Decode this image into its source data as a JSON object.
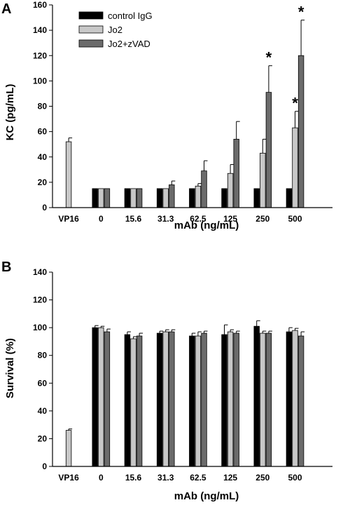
{
  "legend": [
    {
      "name": "control IgG",
      "color": "#000000"
    },
    {
      "name": "Jo2",
      "color": "#c8c8c8"
    },
    {
      "name": "Jo2+zVAD",
      "color": "#6b6b6b"
    }
  ],
  "chart_data": [
    {
      "type": "bar",
      "panel": "A",
      "ylabel": "KC (pg/mL)",
      "xlabel": "mAb (ng/mL)",
      "ylim": [
        0,
        160
      ],
      "yticks": [
        0,
        20,
        40,
        60,
        80,
        100,
        120,
        140,
        160
      ],
      "categories": [
        "VP16",
        "0",
        "15.6",
        "31.3",
        "62.5",
        "125",
        "250",
        "500"
      ],
      "legend_position": "top-left",
      "series": [
        {
          "name": "control IgG",
          "values": [
            null,
            15,
            15,
            15,
            15,
            15,
            15,
            15
          ],
          "errors": [
            null,
            0,
            0,
            0,
            0,
            0,
            0,
            0
          ]
        },
        {
          "name": "Jo2",
          "values": [
            52,
            15,
            15,
            15,
            17,
            27,
            43,
            63
          ],
          "errors": [
            3,
            0,
            0,
            0,
            2,
            7,
            11,
            13
          ]
        },
        {
          "name": "Jo2+zVAD",
          "values": [
            null,
            15,
            15,
            18,
            29,
            54,
            91,
            120
          ],
          "errors": [
            null,
            0,
            0,
            3,
            8,
            14,
            21,
            28
          ]
        }
      ],
      "annotations": [
        {
          "text": "*",
          "category": "250",
          "series": "Jo2+zVAD"
        },
        {
          "text": "*",
          "category": "500",
          "series": "Jo2"
        },
        {
          "text": "*",
          "category": "500",
          "series": "Jo2+zVAD"
        }
      ]
    },
    {
      "type": "bar",
      "panel": "B",
      "ylabel": "Survival (%)",
      "xlabel": "mAb (ng/mL)",
      "ylim": [
        0,
        140
      ],
      "yticks": [
        0,
        20,
        40,
        60,
        80,
        100,
        120,
        140
      ],
      "categories": [
        "VP16",
        "0",
        "15.6",
        "31.3",
        "62.5",
        "125",
        "250",
        "500"
      ],
      "series": [
        {
          "name": "control IgG",
          "values": [
            null,
            100,
            95,
            96,
            94,
            95,
            101,
            97
          ],
          "errors": [
            null,
            1.5,
            2,
            1.5,
            2,
            7,
            4,
            3
          ]
        },
        {
          "name": "Jo2",
          "values": [
            26,
            100,
            92,
            97,
            94,
            97,
            96,
            98
          ],
          "errors": [
            1,
            1,
            1.5,
            1.5,
            3,
            1.5,
            1.5,
            1.5
          ]
        },
        {
          "name": "Jo2+zVAD",
          "values": [
            null,
            97,
            94,
            97,
            96,
            96,
            96,
            94
          ],
          "errors": [
            null,
            2,
            2,
            1.5,
            1.5,
            1.5,
            1.5,
            3
          ]
        }
      ]
    }
  ]
}
